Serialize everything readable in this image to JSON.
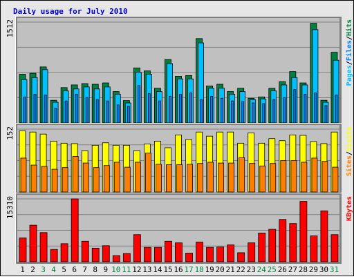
{
  "title": "Daily usage for July 2010",
  "colors": {
    "title": "#0000cc",
    "hits": "#008040",
    "files": "#0080ff",
    "pages": "#00c0ff",
    "visits": "#ffff00",
    "sites": "#ff8000",
    "kbytes": "#ff0000",
    "weekend": "#008040",
    "weekday": "#000000",
    "plot_bg": "#c0c0c0",
    "grid": "#808080"
  },
  "chart_data": [
    {
      "type": "bar",
      "panel": "top",
      "ymax_label": "1512",
      "ylim": [
        0,
        1512
      ],
      "grid": true,
      "legend": "right",
      "legend_labels": [
        "Pages",
        "/",
        "Files",
        "/",
        "Hits"
      ],
      "categories": [
        "1",
        "2",
        "3",
        "4",
        "5",
        "6",
        "7",
        "8",
        "9",
        "10",
        "11",
        "12",
        "13",
        "14",
        "15",
        "16",
        "17",
        "18",
        "19",
        "20",
        "21",
        "22",
        "23",
        "24",
        "25",
        "26",
        "27",
        "28",
        "29",
        "30",
        "31"
      ],
      "weekend_days": [
        "3",
        "4",
        "10",
        "11",
        "17",
        "18",
        "24",
        "25",
        "31"
      ],
      "series": [
        {
          "name": "Hits",
          "values": [
            730,
            745,
            840,
            340,
            530,
            570,
            590,
            580,
            600,
            470,
            335,
            825,
            780,
            520,
            950,
            700,
            710,
            1265,
            555,
            580,
            470,
            520,
            370,
            390,
            520,
            620,
            770,
            600,
            1495,
            340,
            1060
          ]
        },
        {
          "name": "Files",
          "values": [
            650,
            680,
            800,
            310,
            480,
            510,
            540,
            510,
            540,
            430,
            300,
            760,
            730,
            470,
            890,
            660,
            660,
            1200,
            520,
            520,
            430,
            470,
            350,
            360,
            480,
            570,
            680,
            570,
            1400,
            310,
            940
          ]
        },
        {
          "name": "Pages",
          "values": [
            390,
            430,
            420,
            220,
            330,
            430,
            380,
            350,
            330,
            270,
            250,
            560,
            440,
            330,
            400,
            430,
            450,
            350,
            400,
            370,
            330,
            320,
            300,
            290,
            350,
            380,
            500,
            430,
            450,
            260,
            420
          ]
        }
      ]
    },
    {
      "type": "bar",
      "panel": "middle",
      "ymax_label": "152",
      "ylim": [
        0,
        152
      ],
      "grid": true,
      "legend": "right",
      "legend_labels": [
        "Sites",
        "/",
        "Visits"
      ],
      "categories": [
        "1",
        "2",
        "3",
        "4",
        "5",
        "6",
        "7",
        "8",
        "9",
        "10",
        "11",
        "12",
        "13",
        "14",
        "15",
        "16",
        "17",
        "18",
        "19",
        "20",
        "21",
        "22",
        "23",
        "24",
        "25",
        "26",
        "27",
        "28",
        "29",
        "30",
        "31"
      ],
      "weekend_days": [
        "3",
        "4",
        "10",
        "11",
        "17",
        "18",
        "24",
        "25",
        "31"
      ],
      "series": [
        {
          "name": "Visits",
          "values": [
            148,
            145,
            140,
            123,
            118,
            117,
            100,
            113,
            119,
            113,
            113,
            100,
            116,
            123,
            107,
            138,
            127,
            145,
            135,
            145,
            145,
            118,
            143,
            118,
            129,
            124,
            138,
            137,
            122,
            117,
            145
          ]
        },
        {
          "name": "Sites",
          "values": [
            82,
            65,
            62,
            55,
            59,
            86,
            70,
            59,
            64,
            72,
            60,
            72,
            94,
            67,
            66,
            66,
            67,
            69,
            72,
            70,
            70,
            83,
            69,
            63,
            69,
            76,
            76,
            72,
            82,
            74,
            60
          ]
        }
      ]
    },
    {
      "type": "bar",
      "panel": "bottom",
      "ymax_label": "15310",
      "ylim": [
        0,
        15310
      ],
      "grid": true,
      "legend": "right",
      "legend_labels": [
        "KBytes"
      ],
      "categories": [
        "1",
        "2",
        "3",
        "4",
        "5",
        "6",
        "7",
        "8",
        "9",
        "10",
        "11",
        "12",
        "13",
        "14",
        "15",
        "16",
        "17",
        "18",
        "19",
        "20",
        "21",
        "22",
        "23",
        "24",
        "25",
        "26",
        "27",
        "28",
        "29",
        "30",
        "31"
      ],
      "weekend_days": [
        "3",
        "4",
        "10",
        "11",
        "17",
        "18",
        "24",
        "25",
        "31"
      ],
      "series": [
        {
          "name": "KBytes",
          "values": [
            5800,
            8900,
            7100,
            3000,
            4400,
            15310,
            5000,
            3300,
            3900,
            1500,
            2000,
            6600,
            3500,
            3500,
            5000,
            4600,
            2100,
            4800,
            3500,
            3600,
            4100,
            2200,
            4600,
            7000,
            7900,
            10300,
            9300,
            14700,
            6300,
            12400,
            6600
          ]
        }
      ]
    }
  ]
}
